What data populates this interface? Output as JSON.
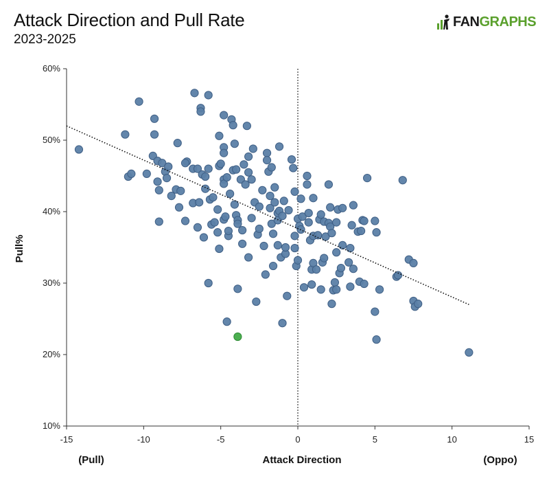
{
  "header": {
    "title": "Attack Direction and Pull Rate",
    "subtitle": "2023-2025",
    "logo_fan": "FAN",
    "logo_graphs": "GRAPHS"
  },
  "colors": {
    "point": "#5b7fa6",
    "point_stroke": "#3f5f85",
    "highlight": "#4caf50",
    "highlight_stroke": "#2e8b35",
    "trend": "#111111",
    "logo_green": "#5aa02c"
  },
  "chart_data": {
    "type": "scatter",
    "title": "Attack Direction and Pull Rate",
    "subtitle": "2023-2025",
    "xlabel": "Attack Direction",
    "xlabel_left": "(Pull)",
    "xlabel_right": "(Oppo)",
    "ylabel": "Pull%",
    "xlim": [
      -15,
      15
    ],
    "ylim": [
      10,
      60
    ],
    "xticks": [
      -15,
      -10,
      -5,
      0,
      5,
      10,
      15
    ],
    "yticks": [
      10,
      20,
      30,
      40,
      50,
      60
    ],
    "ytick_suffix": "%",
    "grid": false,
    "vertical_reference_x": 0,
    "trendline": {
      "x": [
        -15,
        11.1
      ],
      "y": [
        52.0,
        27.0
      ]
    },
    "highlight_point": {
      "x": -3.9,
      "y": 22.5
    },
    "points": [
      [
        -14.2,
        48.7
      ],
      [
        -11.2,
        50.8
      ],
      [
        -11.0,
        44.9
      ],
      [
        -10.8,
        45.3
      ],
      [
        -10.3,
        55.4
      ],
      [
        -9.8,
        45.3
      ],
      [
        -9.3,
        53.0
      ],
      [
        -9.3,
        50.8
      ],
      [
        -9.4,
        47.8
      ],
      [
        -9.1,
        47.1
      ],
      [
        -9.1,
        44.2
      ],
      [
        -9.0,
        43.0
      ],
      [
        -9.0,
        38.6
      ],
      [
        -8.8,
        46.8
      ],
      [
        -8.6,
        45.6
      ],
      [
        -8.5,
        44.7
      ],
      [
        -8.4,
        46.3
      ],
      [
        -8.2,
        42.2
      ],
      [
        -7.9,
        43.1
      ],
      [
        -7.8,
        49.6
      ],
      [
        -7.7,
        40.6
      ],
      [
        -7.6,
        42.9
      ],
      [
        -7.3,
        38.7
      ],
      [
        -7.2,
        47.0
      ],
      [
        -7.3,
        46.8
      ],
      [
        -6.8,
        46.0
      ],
      [
        -6.8,
        41.2
      ],
      [
        -6.7,
        56.6
      ],
      [
        -6.5,
        46.0
      ],
      [
        -6.5,
        37.8
      ],
      [
        -6.4,
        41.3
      ],
      [
        -6.3,
        54.5
      ],
      [
        -6.3,
        54.0
      ],
      [
        -6.2,
        45.2
      ],
      [
        -6.1,
        36.4
      ],
      [
        -6.0,
        43.2
      ],
      [
        -6.0,
        44.9
      ],
      [
        -5.8,
        56.3
      ],
      [
        -5.8,
        30.0
      ],
      [
        -5.8,
        46.0
      ],
      [
        -5.7,
        41.7
      ],
      [
        -5.6,
        38.2
      ],
      [
        -5.5,
        42.0
      ],
      [
        -5.4,
        38.5
      ],
      [
        -5.2,
        40.3
      ],
      [
        -5.2,
        37.1
      ],
      [
        -5.1,
        50.6
      ],
      [
        -5.1,
        46.4
      ],
      [
        -5.0,
        46.7
      ],
      [
        -5.1,
        34.8
      ],
      [
        -4.8,
        53.5
      ],
      [
        -4.8,
        49.0
      ],
      [
        -4.8,
        48.2
      ],
      [
        -4.8,
        44.5
      ],
      [
        -4.8,
        43.9
      ],
      [
        -4.8,
        38.9
      ],
      [
        -4.7,
        39.3
      ],
      [
        -4.6,
        44.8
      ],
      [
        -4.5,
        36.6
      ],
      [
        -4.5,
        37.3
      ],
      [
        -4.6,
        24.6
      ],
      [
        -4.4,
        42.5
      ],
      [
        -4.3,
        52.9
      ],
      [
        -4.2,
        52.1
      ],
      [
        -4.1,
        49.5
      ],
      [
        -4.2,
        45.8
      ],
      [
        -4.0,
        45.9
      ],
      [
        -4.1,
        41.0
      ],
      [
        -4.0,
        39.5
      ],
      [
        -3.9,
        38.8
      ],
      [
        -3.9,
        38.3
      ],
      [
        -3.9,
        29.2
      ],
      [
        -3.7,
        44.5
      ],
      [
        -3.6,
        37.4
      ],
      [
        -3.6,
        35.5
      ],
      [
        -3.5,
        46.6
      ],
      [
        -3.4,
        43.8
      ],
      [
        -3.3,
        52.0
      ],
      [
        -3.2,
        47.7
      ],
      [
        -3.2,
        45.5
      ],
      [
        -3.2,
        33.6
      ],
      [
        -3.0,
        44.5
      ],
      [
        -3.0,
        39.1
      ],
      [
        -2.9,
        48.8
      ],
      [
        -2.8,
        41.3
      ],
      [
        -2.7,
        27.4
      ],
      [
        -2.6,
        36.8
      ],
      [
        -2.5,
        40.7
      ],
      [
        -2.5,
        37.6
      ],
      [
        -2.3,
        43.0
      ],
      [
        -2.2,
        35.2
      ],
      [
        -2.1,
        31.2
      ],
      [
        -2.0,
        48.2
      ],
      [
        -2.0,
        47.2
      ],
      [
        -1.9,
        45.6
      ],
      [
        -1.8,
        42.2
      ],
      [
        -1.8,
        40.5
      ],
      [
        -1.7,
        46.2
      ],
      [
        -1.7,
        38.3
      ],
      [
        -1.6,
        36.9
      ],
      [
        -1.6,
        32.4
      ],
      [
        -1.5,
        43.4
      ],
      [
        -1.5,
        41.3
      ],
      [
        -1.3,
        39.8
      ],
      [
        -1.3,
        38.8
      ],
      [
        -1.3,
        35.3
      ],
      [
        -1.2,
        49.1
      ],
      [
        -1.2,
        40.1
      ],
      [
        -1.1,
        33.6
      ],
      [
        -1.0,
        39.4
      ],
      [
        -1.0,
        24.4
      ],
      [
        -0.9,
        41.5
      ],
      [
        -0.8,
        34.1
      ],
      [
        -0.8,
        35.0
      ],
      [
        -0.7,
        28.2
      ],
      [
        -0.6,
        40.2
      ],
      [
        -0.4,
        47.3
      ],
      [
        -0.3,
        46.1
      ],
      [
        -0.2,
        42.8
      ],
      [
        -0.2,
        36.6
      ],
      [
        -0.2,
        34.9
      ],
      [
        -0.1,
        32.4
      ],
      [
        0.0,
        39.0
      ],
      [
        0.0,
        33.2
      ],
      [
        0.1,
        38.0
      ],
      [
        0.2,
        41.8
      ],
      [
        0.2,
        37.5
      ],
      [
        0.3,
        39.3
      ],
      [
        0.4,
        29.4
      ],
      [
        0.6,
        45.0
      ],
      [
        0.6,
        43.8
      ],
      [
        0.7,
        39.8
      ],
      [
        0.7,
        38.5
      ],
      [
        0.8,
        36.0
      ],
      [
        0.9,
        31.9
      ],
      [
        0.9,
        29.8
      ],
      [
        1.0,
        32.8
      ],
      [
        1.0,
        41.9
      ],
      [
        1.0,
        36.6
      ],
      [
        1.2,
        31.9
      ],
      [
        1.3,
        36.7
      ],
      [
        1.4,
        38.9
      ],
      [
        1.5,
        39.6
      ],
      [
        1.5,
        29.1
      ],
      [
        1.6,
        32.9
      ],
      [
        1.7,
        38.6
      ],
      [
        1.7,
        33.5
      ],
      [
        1.8,
        36.5
      ],
      [
        2.0,
        43.8
      ],
      [
        2.0,
        38.4
      ],
      [
        2.1,
        40.6
      ],
      [
        2.1,
        37.9
      ],
      [
        2.2,
        37.0
      ],
      [
        2.2,
        27.1
      ],
      [
        2.3,
        29.0
      ],
      [
        2.4,
        30.1
      ],
      [
        2.5,
        38.5
      ],
      [
        2.5,
        34.3
      ],
      [
        2.5,
        29.1
      ],
      [
        2.6,
        40.3
      ],
      [
        2.7,
        31.4
      ],
      [
        2.8,
        32.1
      ],
      [
        2.9,
        40.5
      ],
      [
        2.9,
        35.3
      ],
      [
        3.3,
        32.9
      ],
      [
        3.4,
        34.9
      ],
      [
        3.4,
        29.5
      ],
      [
        3.5,
        38.1
      ],
      [
        3.6,
        40.9
      ],
      [
        3.6,
        32.0
      ],
      [
        3.9,
        37.2
      ],
      [
        4.0,
        30.2
      ],
      [
        4.1,
        37.3
      ],
      [
        4.2,
        38.8
      ],
      [
        4.3,
        38.7
      ],
      [
        4.3,
        29.9
      ],
      [
        4.5,
        44.7
      ],
      [
        5.0,
        38.7
      ],
      [
        5.1,
        37.1
      ],
      [
        5.0,
        26.0
      ],
      [
        5.1,
        22.1
      ],
      [
        5.3,
        29.1
      ],
      [
        6.4,
        30.9
      ],
      [
        6.5,
        31.1
      ],
      [
        6.8,
        44.4
      ],
      [
        7.2,
        33.3
      ],
      [
        7.5,
        27.5
      ],
      [
        7.5,
        32.8
      ],
      [
        7.6,
        26.7
      ],
      [
        7.8,
        27.1
      ],
      [
        11.1,
        20.3
      ]
    ]
  }
}
